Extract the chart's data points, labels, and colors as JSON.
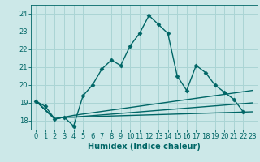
{
  "xlabel": "Humidex (Indice chaleur)",
  "xlim": [
    -0.5,
    23.5
  ],
  "ylim": [
    17.5,
    24.5
  ],
  "yticks": [
    18,
    19,
    20,
    21,
    22,
    23,
    24
  ],
  "xticks": [
    0,
    1,
    2,
    3,
    4,
    5,
    6,
    7,
    8,
    9,
    10,
    11,
    12,
    13,
    14,
    15,
    16,
    17,
    18,
    19,
    20,
    21,
    22,
    23
  ],
  "bg_color": "#cce8e8",
  "grid_color": "#aad4d4",
  "line_color": "#006666",
  "lines": [
    [
      0,
      19.1,
      1,
      18.8,
      2,
      18.1,
      3,
      18.2,
      4,
      17.7,
      5,
      19.4,
      6,
      20.0,
      7,
      20.9,
      8,
      21.4,
      9,
      21.1,
      10,
      22.2,
      11,
      22.9,
      12,
      23.9,
      13,
      23.4,
      14,
      22.9,
      15,
      20.5,
      16,
      19.7,
      17,
      21.1,
      18,
      20.7,
      19,
      20.0,
      20,
      19.6,
      21,
      19.2,
      22,
      18.5
    ],
    [
      0,
      19.1,
      2,
      18.1,
      3,
      18.2,
      4,
      18.2,
      23,
      18.5
    ],
    [
      0,
      19.1,
      2,
      18.1,
      3,
      18.2,
      4,
      18.2,
      23,
      19.0
    ],
    [
      0,
      19.1,
      2,
      18.1,
      3,
      18.2,
      4,
      18.3,
      23,
      19.7
    ]
  ],
  "marker": "D",
  "markersize": 2.5,
  "linewidth": 1.0,
  "label_fontsize": 7,
  "tick_fontsize": 6
}
